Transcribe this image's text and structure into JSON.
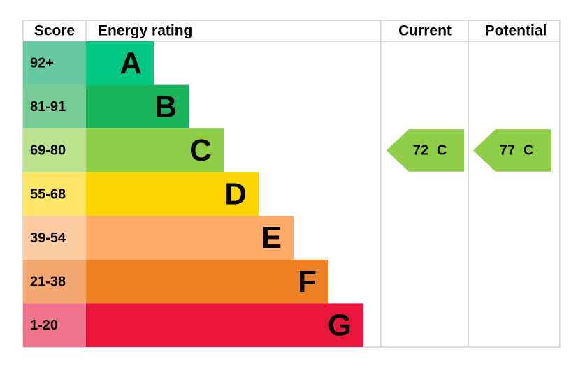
{
  "header": {
    "score": "Score",
    "energy_rating": "Energy rating",
    "current": "Current",
    "potential": "Potential"
  },
  "bands": [
    {
      "score": "92+",
      "rating": "A",
      "color": "#00c781",
      "score_color": "#66c9a2"
    },
    {
      "score": "81-91",
      "rating": "B",
      "color": "#19b459",
      "score_color": "#75cc95"
    },
    {
      "score": "69-80",
      "rating": "C",
      "color": "#8dce46",
      "score_color": "#bbe28f"
    },
    {
      "score": "55-68",
      "rating": "D",
      "color": "#ffd500",
      "score_color": "#ffe566"
    },
    {
      "score": "39-54",
      "rating": "E",
      "color": "#fcaa65",
      "score_color": "#fdcca3"
    },
    {
      "score": "21-38",
      "rating": "F",
      "color": "#ef8023",
      "score_color": "#f4a870"
    },
    {
      "score": "1-20",
      "rating": "G",
      "color": "#e9153b",
      "score_color": "#f07389"
    }
  ],
  "current": {
    "score": 72,
    "rating": "C"
  },
  "potential": {
    "score": 77,
    "rating": "C"
  }
}
